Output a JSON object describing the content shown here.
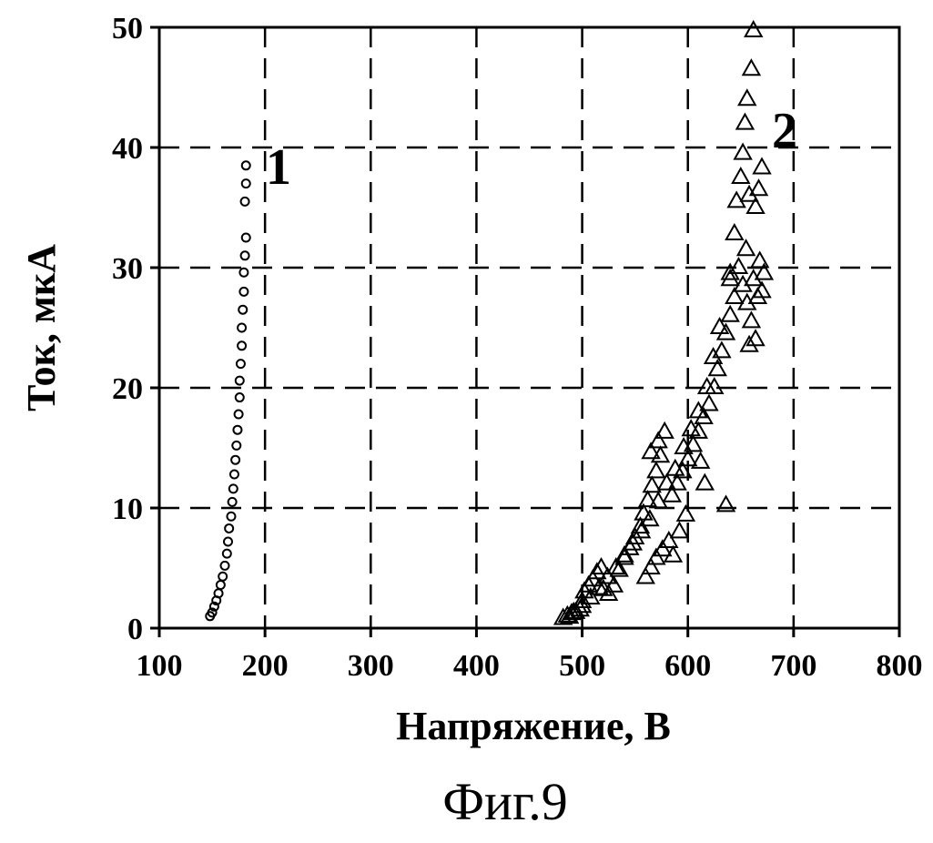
{
  "chart_data": {
    "type": "scatter",
    "xlabel": "Напряжение, В",
    "ylabel": "Ток, мкА",
    "caption": "Фиг.9",
    "xlim": [
      100,
      800
    ],
    "ylim": [
      0,
      50
    ],
    "xticks": [
      100,
      200,
      300,
      400,
      500,
      600,
      700,
      800
    ],
    "yticks": [
      0,
      10,
      20,
      30,
      40,
      50
    ],
    "grid": "dashed",
    "colors": {
      "ink": "#000000",
      "background": "#ffffff"
    },
    "series": [
      {
        "label": "1",
        "marker": "circle",
        "points": [
          [
            148,
            1.0
          ],
          [
            150,
            1.3
          ],
          [
            152,
            1.8
          ],
          [
            154,
            2.3
          ],
          [
            156,
            2.9
          ],
          [
            158,
            3.6
          ],
          [
            160,
            4.3
          ],
          [
            162,
            5.2
          ],
          [
            164,
            6.2
          ],
          [
            165,
            7.2
          ],
          [
            166,
            8.3
          ],
          [
            168,
            9.3
          ],
          [
            169,
            10.5
          ],
          [
            170,
            11.6
          ],
          [
            171,
            12.8
          ],
          [
            172,
            14.0
          ],
          [
            173,
            15.2
          ],
          [
            174,
            16.5
          ],
          [
            175,
            17.8
          ],
          [
            176,
            19.2
          ],
          [
            176,
            20.6
          ],
          [
            177,
            22.0
          ],
          [
            178,
            23.5
          ],
          [
            178,
            25.0
          ],
          [
            179,
            26.5
          ],
          [
            180,
            28.0
          ],
          [
            180,
            29.6
          ],
          [
            181,
            31.0
          ],
          [
            182,
            32.5
          ],
          [
            181,
            35.5
          ],
          [
            182,
            37.0
          ],
          [
            182,
            38.5
          ]
        ]
      },
      {
        "label": "2",
        "marker": "triangle",
        "points": [
          [
            482,
            0.8
          ],
          [
            486,
            1.0
          ],
          [
            490,
            1.2
          ],
          [
            494,
            1.3
          ],
          [
            498,
            1.5
          ],
          [
            500,
            2.2
          ],
          [
            502,
            3.0
          ],
          [
            506,
            3.5
          ],
          [
            510,
            4.0
          ],
          [
            514,
            4.6
          ],
          [
            518,
            5.0
          ],
          [
            520,
            3.2
          ],
          [
            525,
            2.8
          ],
          [
            530,
            3.5
          ],
          [
            535,
            4.8
          ],
          [
            540,
            5.8
          ],
          [
            545,
            6.6
          ],
          [
            550,
            7.5
          ],
          [
            555,
            8.4
          ],
          [
            558,
            9.5
          ],
          [
            562,
            10.6
          ],
          [
            566,
            11.8
          ],
          [
            570,
            13.0
          ],
          [
            574,
            14.3
          ],
          [
            578,
            16.3
          ],
          [
            572,
            15.5
          ],
          [
            565,
            14.6
          ],
          [
            560,
            4.2
          ],
          [
            565,
            5.0
          ],
          [
            570,
            5.8
          ],
          [
            576,
            6.5
          ],
          [
            582,
            7.2
          ],
          [
            586,
            6.0
          ],
          [
            592,
            8.0
          ],
          [
            598,
            9.4
          ],
          [
            585,
            11.0
          ],
          [
            590,
            12.0
          ],
          [
            595,
            13.0
          ],
          [
            600,
            14.0
          ],
          [
            605,
            15.2
          ],
          [
            610,
            16.3
          ],
          [
            615,
            17.5
          ],
          [
            620,
            18.6
          ],
          [
            612,
            13.8
          ],
          [
            616,
            12.0
          ],
          [
            625,
            20.0
          ],
          [
            628,
            21.5
          ],
          [
            632,
            23.0
          ],
          [
            636,
            24.5
          ],
          [
            640,
            26.0
          ],
          [
            644,
            27.5
          ],
          [
            636,
            10.2
          ],
          [
            640,
            29.5
          ],
          [
            644,
            32.8
          ],
          [
            646,
            35.5
          ],
          [
            650,
            37.5
          ],
          [
            652,
            39.5
          ],
          [
            654,
            42.0
          ],
          [
            656,
            44.0
          ],
          [
            660,
            46.5
          ],
          [
            662,
            49.7
          ],
          [
            658,
            36.0
          ],
          [
            664,
            35.0
          ],
          [
            667,
            36.5
          ],
          [
            670,
            38.3
          ],
          [
            648,
            30.0
          ],
          [
            652,
            28.5
          ],
          [
            656,
            27.0
          ],
          [
            660,
            25.5
          ],
          [
            664,
            24.0
          ],
          [
            658,
            23.5
          ],
          [
            662,
            29.0
          ],
          [
            666,
            27.5
          ],
          [
            670,
            28.0
          ],
          [
            672,
            29.5
          ],
          [
            668,
            30.5
          ],
          [
            655,
            31.5
          ],
          [
            640,
            29.0
          ],
          [
            630,
            25.0
          ],
          [
            624,
            22.5
          ],
          [
            618,
            20.0
          ],
          [
            610,
            18.0
          ],
          [
            603,
            16.5
          ],
          [
            596,
            15.0
          ],
          [
            588,
            13.2
          ],
          [
            580,
            12.0
          ],
          [
            572,
            10.5
          ],
          [
            564,
            9.0
          ],
          [
            556,
            8.0
          ],
          [
            548,
            7.0
          ],
          [
            540,
            6.0
          ],
          [
            532,
            5.0
          ],
          [
            524,
            4.2
          ],
          [
            516,
            3.3
          ],
          [
            508,
            2.5
          ],
          [
            500,
            1.8
          ],
          [
            492,
            1.3
          ],
          [
            488,
            0.9
          ]
        ]
      }
    ]
  }
}
